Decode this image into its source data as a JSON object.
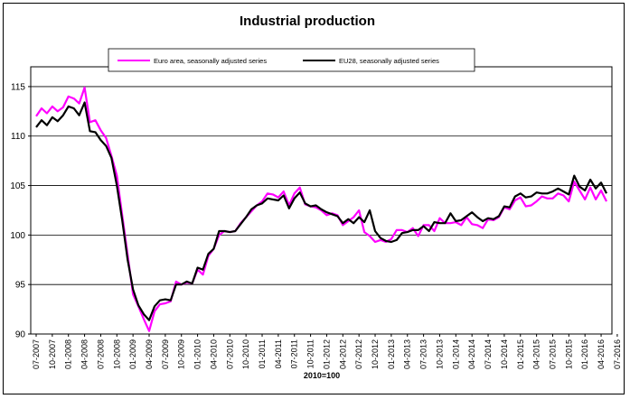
{
  "chart_data": {
    "type": "line",
    "title": "Industrial production",
    "xlabel": "2010=100",
    "ylabel": "",
    "ylim": [
      90,
      117
    ],
    "yticks": [
      90,
      95,
      100,
      105,
      110,
      115
    ],
    "grid": "horizontal",
    "legend_position": "top-center",
    "x_tick_labels": [
      "07-2007",
      "10-2007",
      "01-2008",
      "04-2008",
      "07-2008",
      "10-2008",
      "01-2009",
      "04-2009",
      "07-2009",
      "10-2009",
      "01-2010",
      "04-2010",
      "07-2010",
      "10-2010",
      "01-2011",
      "04-2011",
      "07-2011",
      "10-2011",
      "01-2012",
      "04-2012",
      "07-2012",
      "10-2012",
      "01-2013",
      "04-2013",
      "07-2013",
      "10-2013",
      "01-2014",
      "04-2014",
      "07-2014",
      "10-2014",
      "01-2015",
      "04-2015",
      "07-2015",
      "10-2015",
      "01-2016",
      "04-2016",
      "07-2016"
    ],
    "series": [
      {
        "name": "Euro area, seasonally adjusted series",
        "color": "#ff00ff",
        "values": [
          112.0,
          112.8,
          112.3,
          113.0,
          112.5,
          112.9,
          114.0,
          113.8,
          113.3,
          114.9,
          111.4,
          111.6,
          110.6,
          109.8,
          108.0,
          106.0,
          102.0,
          98.0,
          94.0,
          92.8,
          91.5,
          90.3,
          92.3,
          93.0,
          93.1,
          93.3,
          95.3,
          95.0,
          95.2,
          95.1,
          96.5,
          96.0,
          97.9,
          98.6,
          100.0,
          100.4,
          100.3,
          100.4,
          101.2,
          101.8,
          102.4,
          103.0,
          103.4,
          104.2,
          104.1,
          103.8,
          104.4,
          103.0,
          104.2,
          104.8,
          103.1,
          102.9,
          102.8,
          102.5,
          102.0,
          102.2,
          102.0,
          101.0,
          101.4,
          101.8,
          102.5,
          100.3,
          99.9,
          99.3,
          99.5,
          99.3,
          99.6,
          100.5,
          100.5,
          100.3,
          100.7,
          99.9,
          101.0,
          101.0,
          100.4,
          101.7,
          101.2,
          101.2,
          101.3,
          101.0,
          101.8,
          101.1,
          101.0,
          100.7,
          101.6,
          101.5,
          101.8,
          102.8,
          102.6,
          103.5,
          103.8,
          102.9,
          103.0,
          103.4,
          103.9,
          103.7,
          103.7,
          104.2,
          104.0,
          103.4,
          105.4,
          104.5,
          103.6,
          104.8,
          103.6,
          104.5,
          103.4
        ]
      },
      {
        "name": "EU28, seasonally adjusted series",
        "color": "#000000",
        "values": [
          110.9,
          111.6,
          111.1,
          111.9,
          111.5,
          112.1,
          113.0,
          112.8,
          112.1,
          113.4,
          110.5,
          110.4,
          109.6,
          109.0,
          107.8,
          105.0,
          101.5,
          97.5,
          94.5,
          92.9,
          92.0,
          91.4,
          92.8,
          93.4,
          93.5,
          93.4,
          95.0,
          95.0,
          95.3,
          95.1,
          96.7,
          96.5,
          98.1,
          98.6,
          100.4,
          100.4,
          100.3,
          100.4,
          101.1,
          101.8,
          102.6,
          103.0,
          103.2,
          103.7,
          103.6,
          103.5,
          104.0,
          102.7,
          103.7,
          104.3,
          103.2,
          102.9,
          103.0,
          102.6,
          102.3,
          102.1,
          101.9,
          101.2,
          101.6,
          101.2,
          101.8,
          101.3,
          102.5,
          100.4,
          99.7,
          99.4,
          99.3,
          99.5,
          100.2,
          100.3,
          100.5,
          100.5,
          100.9,
          100.4,
          101.3,
          101.2,
          101.2,
          102.2,
          101.4,
          101.5,
          101.9,
          102.3,
          101.8,
          101.4,
          101.7,
          101.6,
          101.9,
          102.9,
          102.8,
          103.9,
          104.2,
          103.8,
          103.9,
          104.3,
          104.2,
          104.2,
          104.4,
          104.7,
          104.4,
          104.1,
          106.0,
          104.9,
          104.5,
          105.6,
          104.7,
          105.3,
          104.2
        ]
      }
    ]
  }
}
